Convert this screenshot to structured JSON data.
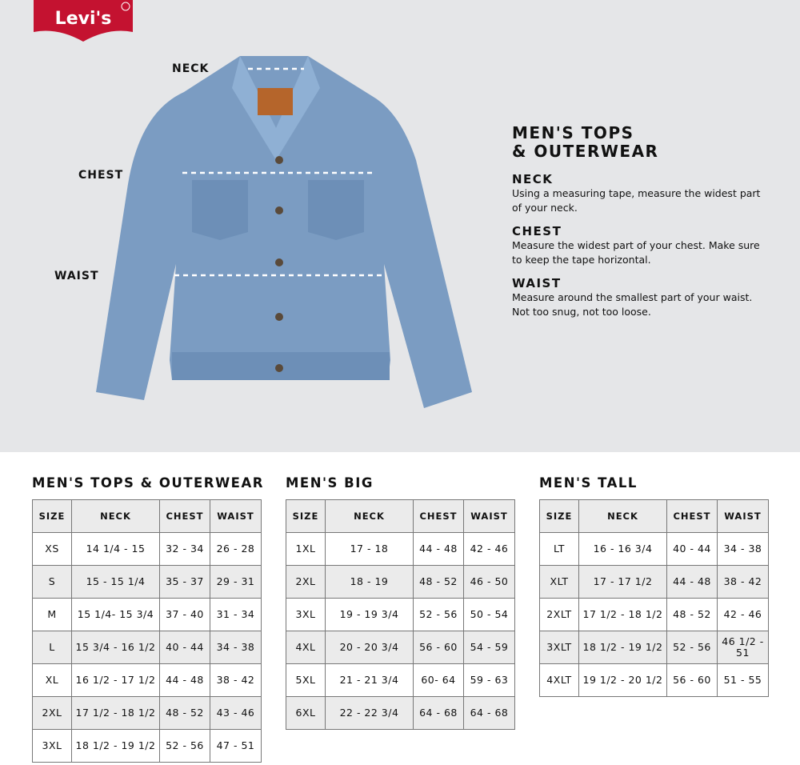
{
  "brand": {
    "logo_text": "Levi's",
    "color": "#c41230"
  },
  "diagram": {
    "labels": [
      "NECK",
      "CHEST",
      "WAIST"
    ],
    "jacket_color": "#7b9cc2"
  },
  "info": {
    "title_line1": "MEN'S TOPS",
    "title_line2": "& OUTERWEAR",
    "sections": [
      {
        "heading": "NECK",
        "text": "Using a measuring tape, measure the widest part of your neck."
      },
      {
        "heading": "CHEST",
        "text": "Measure the widest part of your chest. Make sure to keep the tape horizontal."
      },
      {
        "heading": "WAIST",
        "text": "Measure around the smallest part of your waist. Not too snug, not too loose."
      }
    ]
  },
  "tables": [
    {
      "title": "MEN'S TOPS & OUTERWEAR",
      "headers": [
        "SIZE",
        "NECK",
        "CHEST",
        "WAIST"
      ],
      "rows": [
        [
          "XS",
          "14 1/4 - 15",
          "32 - 34",
          "26 - 28"
        ],
        [
          "S",
          "15 - 15 1/4",
          "35 - 37",
          "29 - 31"
        ],
        [
          "M",
          "15 1/4- 15 3/4",
          "37 - 40",
          "31 - 34"
        ],
        [
          "L",
          "15 3/4 - 16 1/2",
          "40 - 44",
          "34 - 38"
        ],
        [
          "XL",
          "16 1/2 - 17 1/2",
          "44 - 48",
          "38 - 42"
        ],
        [
          "2XL",
          "17 1/2 - 18 1/2",
          "48 - 52",
          "43 - 46"
        ],
        [
          "3XL",
          "18 1/2 - 19 1/2",
          "52 - 56",
          "47 - 51"
        ]
      ]
    },
    {
      "title": "MEN'S BIG",
      "headers": [
        "SIZE",
        "NECK",
        "CHEST",
        "WAIST"
      ],
      "rows": [
        [
          "1XL",
          "17 - 18",
          "44 - 48",
          "42 - 46"
        ],
        [
          "2XL",
          "18 - 19",
          "48 - 52",
          "46 - 50"
        ],
        [
          "3XL",
          "19 - 19 3/4",
          "52 - 56",
          "50 - 54"
        ],
        [
          "4XL",
          "20 - 20 3/4",
          "56 - 60",
          "54 - 59"
        ],
        [
          "5XL",
          "21 - 21 3/4",
          "60- 64",
          "59 - 63"
        ],
        [
          "6XL",
          "22 - 22 3/4",
          "64 - 68",
          "64 - 68"
        ]
      ]
    },
    {
      "title": "MEN'S TALL",
      "headers": [
        "SIZE",
        "NECK",
        "CHEST",
        "WAIST"
      ],
      "rows": [
        [
          "LT",
          "16 - 16 3/4",
          "40 - 44",
          "34 - 38"
        ],
        [
          "XLT",
          "17 - 17 1/2",
          "44 - 48",
          "38 - 42"
        ],
        [
          "2XLT",
          "17 1/2 - 18 1/2",
          "48 - 52",
          "42 - 46"
        ],
        [
          "3XLT",
          "18 1/2 - 19 1/2",
          "52 - 56",
          "46 1/2 - 51"
        ],
        [
          "4XLT",
          "19 1/2 - 20 1/2",
          "56 - 60",
          "51 - 55"
        ]
      ]
    }
  ]
}
